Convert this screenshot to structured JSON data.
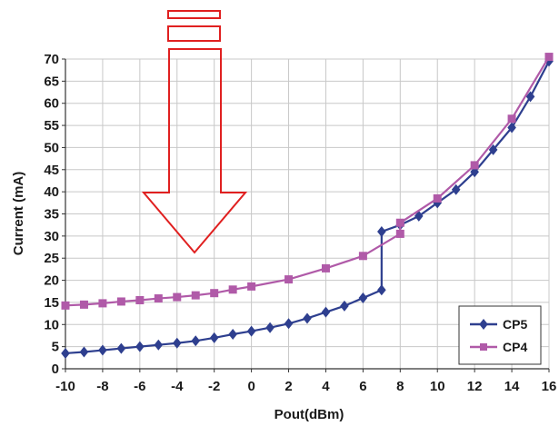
{
  "chart_data": {
    "type": "line",
    "xlabel": "Pout(dBm)",
    "ylabel": "Current (mA)",
    "xlim": [
      -10,
      16
    ],
    "ylim": [
      0,
      70
    ],
    "xticks": [
      "-10",
      "-8",
      "-6",
      "-4",
      "-2",
      "0",
      "2",
      "4",
      "6",
      "8",
      "10",
      "12",
      "14",
      "16"
    ],
    "yticks": [
      "0",
      "5",
      "10",
      "15",
      "20",
      "25",
      "30",
      "35",
      "40",
      "45",
      "50",
      "55",
      "60",
      "65",
      "70"
    ],
    "grid": true,
    "legend_position": "bottom-right",
    "series": [
      {
        "name": "CP5",
        "color": "#2e3f8f",
        "marker": "diamond",
        "points": [
          [
            -10,
            3.5
          ],
          [
            -9,
            3.8
          ],
          [
            -8,
            4.2
          ],
          [
            -7,
            4.6
          ],
          [
            -6,
            5.0
          ],
          [
            -5,
            5.4
          ],
          [
            -4,
            5.8
          ],
          [
            -3,
            6.3
          ],
          [
            -2,
            7.0
          ],
          [
            -1,
            7.8
          ],
          [
            0,
            8.5
          ],
          [
            1,
            9.3
          ],
          [
            2,
            10.2
          ],
          [
            3,
            11.4
          ],
          [
            4,
            12.8
          ],
          [
            5,
            14.2
          ],
          [
            6,
            16.0
          ],
          [
            7,
            17.8
          ],
          [
            7,
            31.0
          ],
          [
            8,
            32.5
          ],
          [
            9,
            34.5
          ],
          [
            10,
            37.5
          ],
          [
            11,
            40.5
          ],
          [
            12,
            44.5
          ],
          [
            13,
            49.5
          ],
          [
            14,
            54.5
          ],
          [
            15,
            61.5
          ],
          [
            16,
            69.5
          ]
        ]
      },
      {
        "name": "CP4",
        "color": "#b05aa8",
        "marker": "square",
        "points": [
          [
            -10,
            14.3
          ],
          [
            -9,
            14.5
          ],
          [
            -8,
            14.8
          ],
          [
            -7,
            15.2
          ],
          [
            -6,
            15.5
          ],
          [
            -5,
            15.9
          ],
          [
            -4,
            16.2
          ],
          [
            -3,
            16.6
          ],
          [
            -2,
            17.1
          ],
          [
            -1,
            17.9
          ],
          [
            0,
            18.6
          ],
          [
            2,
            20.2
          ],
          [
            4,
            22.7
          ],
          [
            6,
            25.5
          ],
          [
            8,
            30.5
          ],
          [
            8,
            33.0
          ],
          [
            10,
            38.5
          ],
          [
            12,
            46.0
          ],
          [
            14,
            56.5
          ],
          [
            16,
            70.5
          ]
        ]
      }
    ]
  },
  "annotation": {
    "type": "down-arrow",
    "stroke": "#e02020"
  }
}
